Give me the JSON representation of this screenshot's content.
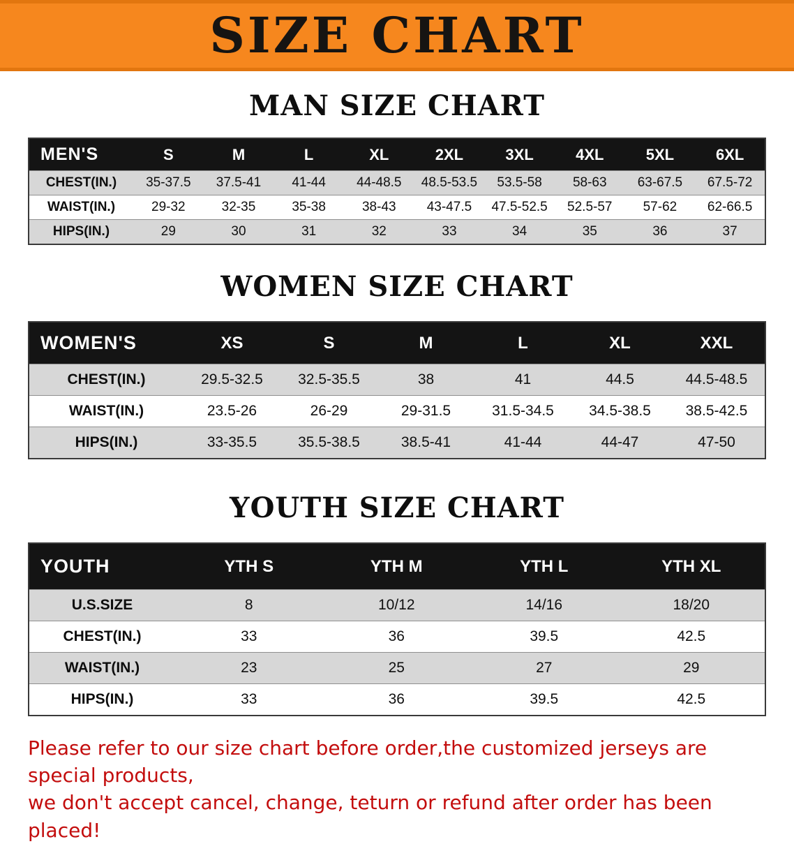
{
  "banner": {
    "title": "SIZE CHART"
  },
  "colors": {
    "banner_bg": "#F6871E",
    "banner_text": "#161412",
    "table_header_bg": "#141414",
    "table_header_text": "#FFFFFF",
    "row_shade": "#D7D7D7",
    "note_text": "#C30D0D"
  },
  "chart_data": [
    {
      "type": "table",
      "title": "MAN SIZE CHART",
      "corner_label": "MEN'S",
      "columns": [
        "S",
        "M",
        "L",
        "XL",
        "2XL",
        "3XL",
        "4XL",
        "5XL",
        "6XL"
      ],
      "rows": [
        {
          "label": "CHEST(IN.)",
          "values": [
            "35-37.5",
            "37.5-41",
            "41-44",
            "44-48.5",
            "48.5-53.5",
            "53.5-58",
            "58-63",
            "63-67.5",
            "67.5-72"
          ]
        },
        {
          "label": "WAIST(IN.)",
          "values": [
            "29-32",
            "32-35",
            "35-38",
            "38-43",
            "43-47.5",
            "47.5-52.5",
            "52.5-57",
            "57-62",
            "62-66.5"
          ]
        },
        {
          "label": "HIPS(IN.)",
          "values": [
            "29",
            "30",
            "31",
            "32",
            "33",
            "34",
            "35",
            "36",
            "37"
          ]
        }
      ]
    },
    {
      "type": "table",
      "title": "WOMEN SIZE CHART",
      "corner_label": "WOMEN'S",
      "columns": [
        "XS",
        "S",
        "M",
        "L",
        "XL",
        "XXL"
      ],
      "rows": [
        {
          "label": "CHEST(IN.)",
          "values": [
            "29.5-32.5",
            "32.5-35.5",
            "38",
            "41",
            "44.5",
            "44.5-48.5"
          ]
        },
        {
          "label": "WAIST(IN.)",
          "values": [
            "23.5-26",
            "26-29",
            "29-31.5",
            "31.5-34.5",
            "34.5-38.5",
            "38.5-42.5"
          ]
        },
        {
          "label": "HIPS(IN.)",
          "values": [
            "33-35.5",
            "35.5-38.5",
            "38.5-41",
            "41-44",
            "44-47",
            "47-50"
          ]
        }
      ]
    },
    {
      "type": "table",
      "title": "YOUTH SIZE CHART",
      "corner_label": "YOUTH",
      "columns": [
        "YTH S",
        "YTH M",
        "YTH L",
        "YTH XL"
      ],
      "rows": [
        {
          "label": "U.S.SIZE",
          "values": [
            "8",
            "10/12",
            "14/16",
            "18/20"
          ]
        },
        {
          "label": "CHEST(IN.)",
          "values": [
            "33",
            "36",
            "39.5",
            "42.5"
          ]
        },
        {
          "label": "WAIST(IN.)",
          "values": [
            "23",
            "25",
            "27",
            "29"
          ]
        },
        {
          "label": "HIPS(IN.)",
          "values": [
            "33",
            "36",
            "39.5",
            "42.5"
          ]
        }
      ]
    }
  ],
  "footer": {
    "lines": [
      "Please refer to our size chart before order,the customized jerseys are special products,",
      "we don't accept cancel, change, teturn or refund after order has been placed!"
    ]
  }
}
